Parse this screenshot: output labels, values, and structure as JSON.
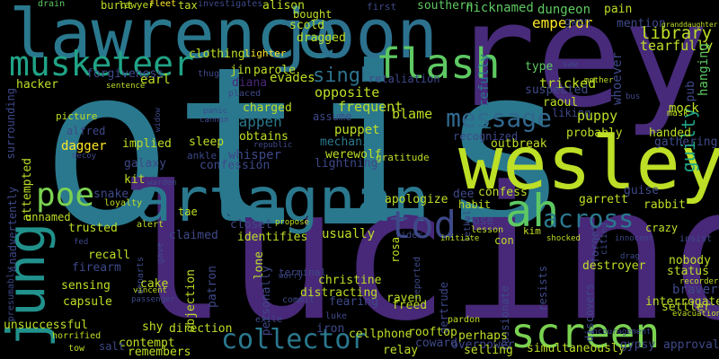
{
  "word_cloud": {
    "background": "#000000",
    "palette": [
      "#440154",
      "#3b528b",
      "#21918c",
      "#5ec962",
      "#bddf26"
    ],
    "words": [
      {
        "text": "otis",
        "color": "#2a788e"
      },
      {
        "text": "lucinda",
        "color": "#482878"
      },
      {
        "text": "rey",
        "color": "#472a7a"
      },
      {
        "text": "lawrence",
        "color": "#2a788e"
      },
      {
        "text": "joon",
        "color": "#2c718e"
      },
      {
        "text": "wesley",
        "color": "#bddf26"
      },
      {
        "text": "artagnan",
        "color": "#2a788e"
      },
      {
        "text": "ah",
        "color": "#5ec962"
      },
      {
        "text": "jung",
        "color": "#21918c"
      },
      {
        "text": "screen",
        "color": "#7ad151"
      },
      {
        "text": "flash",
        "color": "#5ec962"
      },
      {
        "text": "musketeer",
        "color": "#20a386"
      },
      {
        "text": "tod",
        "color": "#3e4989"
      },
      {
        "text": "poe",
        "color": "#7ad151"
      },
      {
        "text": "message",
        "color": "#31688e"
      },
      {
        "text": "collector",
        "color": "#2a788e"
      },
      {
        "text": "across",
        "color": "#2a788e"
      },
      {
        "text": "singh",
        "color": "#2c728e"
      },
      {
        "text": "library",
        "color": "#bddf26"
      },
      {
        "text": "guilty",
        "color": "#20a386"
      },
      {
        "text": "emperor",
        "color": "#fde725"
      },
      {
        "text": "nicknamed",
        "color": "#5ec962"
      },
      {
        "text": "southern",
        "color": "#5ec962"
      },
      {
        "text": "alison",
        "color": "#bddf26"
      },
      {
        "text": "bought",
        "color": "#bddf26"
      },
      {
        "text": "burnt",
        "color": "#bddf26"
      },
      {
        "text": "lawyer",
        "color": "#bddf26"
      },
      {
        "text": "fleet",
        "color": "#fde725"
      },
      {
        "text": "tax",
        "color": "#bddf26"
      },
      {
        "text": "investigates",
        "color": "#3e4989"
      },
      {
        "text": "drain",
        "color": "#5ec962"
      },
      {
        "text": "first",
        "color": "#3e4989"
      },
      {
        "text": "scold",
        "color": "#bddf26"
      },
      {
        "text": "dragged",
        "color": "#bddf26"
      },
      {
        "text": "dungeon",
        "color": "#5ec962"
      },
      {
        "text": "pain",
        "color": "#bddf26"
      },
      {
        "text": "gwen",
        "color": "#3e4989"
      },
      {
        "text": "mention",
        "color": "#3e4989"
      },
      {
        "text": "tearfully",
        "color": "#bddf26"
      },
      {
        "text": "clothing",
        "color": "#bddf26"
      },
      {
        "text": "lighter",
        "color": "#fde725"
      },
      {
        "text": "jin",
        "color": "#bddf26"
      },
      {
        "text": "parole",
        "color": "#bddf26"
      },
      {
        "text": "diana",
        "color": "#482878"
      },
      {
        "text": "evades",
        "color": "#bddf26"
      },
      {
        "text": "earl",
        "color": "#bddf26"
      },
      {
        "text": "forgiveness",
        "color": "#3e4989"
      },
      {
        "text": "hacker",
        "color": "#bddf26"
      },
      {
        "text": "sentence",
        "color": "#bddf26"
      },
      {
        "text": "thug",
        "color": "#3e4989"
      },
      {
        "text": "placed",
        "color": "#3e4989"
      },
      {
        "text": "retaliation",
        "color": "#3e4989"
      },
      {
        "text": "opposite",
        "color": "#bddf26"
      },
      {
        "text": "peacefully",
        "color": "#2a788e"
      },
      {
        "text": "type",
        "color": "#5ec962"
      },
      {
        "text": "tricked",
        "color": "#bddf26"
      },
      {
        "text": "suspected",
        "color": "#3e4989"
      },
      {
        "text": "raoul",
        "color": "#bddf26"
      },
      {
        "text": "whoever",
        "color": "#3e4989"
      },
      {
        "text": "hanging",
        "color": "#5ec962"
      },
      {
        "text": "pub",
        "color": "#3e4989"
      },
      {
        "text": "mother",
        "color": "#bddf26"
      },
      {
        "text": "bus",
        "color": "#3e4989"
      },
      {
        "text": "saw",
        "color": "#3e4989"
      },
      {
        "text": "granddaughter",
        "color": "#bddf26"
      },
      {
        "text": "frequent",
        "color": "#bddf26"
      },
      {
        "text": "assume",
        "color": "#3e4989"
      },
      {
        "text": "blame",
        "color": "#bddf26"
      },
      {
        "text": "liking",
        "color": "#3e4989"
      },
      {
        "text": "puppy",
        "color": "#bddf26"
      },
      {
        "text": "mask",
        "color": "#bddf26"
      },
      {
        "text": "mock",
        "color": "#bddf26"
      },
      {
        "text": "charged",
        "color": "#bddf26"
      },
      {
        "text": "happen",
        "color": "#2a788e"
      },
      {
        "text": "surrounding",
        "color": "#3e4989"
      },
      {
        "text": "picture",
        "color": "#bddf26"
      },
      {
        "text": "alfred",
        "color": "#3e4989"
      },
      {
        "text": "dagger",
        "color": "#fde725"
      },
      {
        "text": "implied",
        "color": "#bddf26"
      },
      {
        "text": "panic",
        "color": "#3e4989"
      },
      {
        "text": "cannon",
        "color": "#3e4989"
      },
      {
        "text": "widow",
        "color": "#3e4989"
      },
      {
        "text": "obtains",
        "color": "#bddf26"
      },
      {
        "text": "republic",
        "color": "#3e4989"
      },
      {
        "text": "puppet",
        "color": "#bddf26"
      },
      {
        "text": "mechanic",
        "color": "#2a788e"
      },
      {
        "text": "recognized",
        "color": "#3e4989"
      },
      {
        "text": "outbreak",
        "color": "#bddf26"
      },
      {
        "text": "probably",
        "color": "#bddf26"
      },
      {
        "text": "handed",
        "color": "#bddf26"
      },
      {
        "text": "gathering",
        "color": "#3e4989"
      },
      {
        "text": "sleep",
        "color": "#bddf26"
      },
      {
        "text": "whisper",
        "color": "#3e4989"
      },
      {
        "text": "werewolf",
        "color": "#bddf26"
      },
      {
        "text": "gratitude",
        "color": "#bddf26"
      },
      {
        "text": "ankle",
        "color": "#3e4989"
      },
      {
        "text": "confession",
        "color": "#3e4989"
      },
      {
        "text": "lightning",
        "color": "#3e4989"
      },
      {
        "text": "galaxy",
        "color": "#3e4989"
      },
      {
        "text": "decoy",
        "color": "#3e4989"
      },
      {
        "text": "kit",
        "color": "#bddf26"
      },
      {
        "text": "warden",
        "color": "#3e4989"
      },
      {
        "text": "snake",
        "color": "#3e4989"
      },
      {
        "text": "loyalty",
        "color": "#bddf26"
      },
      {
        "text": "attempted",
        "color": "#bddf26"
      },
      {
        "text": "inadvertently",
        "color": "#3e4989"
      },
      {
        "text": "unnamed",
        "color": "#bddf26"
      },
      {
        "text": "tae",
        "color": "#bddf26"
      },
      {
        "text": "closet",
        "color": "#3e4989"
      },
      {
        "text": "apologize",
        "color": "#bddf26"
      },
      {
        "text": "dee",
        "color": "#3e4989"
      },
      {
        "text": "habit",
        "color": "#bddf26"
      },
      {
        "text": "confess",
        "color": "#bddf26"
      },
      {
        "text": "guise",
        "color": "#3e4989"
      },
      {
        "text": "garrett",
        "color": "#bddf26"
      },
      {
        "text": "rabbit",
        "color": "#bddf26"
      },
      {
        "text": "alert",
        "color": "#bddf26"
      },
      {
        "text": "propose",
        "color": "#bddf26"
      },
      {
        "text": "lethal",
        "color": "#3e4989"
      },
      {
        "text": "rose",
        "color": "#3e4989"
      },
      {
        "text": "kim",
        "color": "#bddf26"
      },
      {
        "text": "lesson",
        "color": "#bddf26"
      },
      {
        "text": "crazy",
        "color": "#bddf26"
      },
      {
        "text": "trusted",
        "color": "#bddf26"
      },
      {
        "text": "claimed",
        "color": "#3e4989"
      },
      {
        "text": "identifies",
        "color": "#bddf26"
      },
      {
        "text": "usually",
        "color": "#bddf26"
      },
      {
        "text": "rider",
        "color": "#3e4989"
      },
      {
        "text": "initiate",
        "color": "#bddf26"
      },
      {
        "text": "forget",
        "color": "#3e4989"
      },
      {
        "text": "citing",
        "color": "#3e4989"
      },
      {
        "text": "innocent",
        "color": "#3e4989"
      },
      {
        "text": "insist",
        "color": "#3e4989"
      },
      {
        "text": "nobody",
        "color": "#bddf26"
      },
      {
        "text": "status",
        "color": "#bddf26"
      },
      {
        "text": "drag",
        "color": "#3e4989"
      },
      {
        "text": "fed",
        "color": "#3e4989"
      },
      {
        "text": "recall",
        "color": "#bddf26"
      },
      {
        "text": "firearm",
        "color": "#3e4989"
      },
      {
        "text": "departs",
        "color": "#3e4989"
      },
      {
        "text": "gave",
        "color": "#3e4989"
      },
      {
        "text": "lone",
        "color": "#bddf26"
      },
      {
        "text": "con",
        "color": "#bddf26"
      },
      {
        "text": "shocked",
        "color": "#bddf26"
      },
      {
        "text": "reported",
        "color": "#3e4989"
      },
      {
        "text": "destroyer",
        "color": "#bddf26"
      },
      {
        "text": "bravery",
        "color": "#3e4989"
      },
      {
        "text": "recorder",
        "color": "#bddf26"
      },
      {
        "text": "settler",
        "color": "#bddf26"
      },
      {
        "text": "evacuation",
        "color": "#bddf26"
      },
      {
        "text": "presumably",
        "color": "#3e4989"
      },
      {
        "text": "sensing",
        "color": "#bddf26"
      },
      {
        "text": "capsule",
        "color": "#bddf26"
      },
      {
        "text": "cake",
        "color": "#bddf26"
      },
      {
        "text": "vincent",
        "color": "#bddf26"
      },
      {
        "text": "passenger",
        "color": "#3e4989"
      },
      {
        "text": "patron",
        "color": "#3e4989"
      },
      {
        "text": "objection",
        "color": "#bddf26"
      },
      {
        "text": "personally",
        "color": "#3e4989"
      },
      {
        "text": "terminal",
        "color": "#3e4989"
      },
      {
        "text": "christine",
        "color": "#bddf26"
      },
      {
        "text": "distracting",
        "color": "#bddf26"
      },
      {
        "text": "worry",
        "color": "#3e4989"
      },
      {
        "text": "commit",
        "color": "#3e4989"
      },
      {
        "text": "fearing",
        "color": "#3e4989"
      },
      {
        "text": "raven",
        "color": "#bddf26"
      },
      {
        "text": "freed",
        "color": "#bddf26"
      },
      {
        "text": "gertrude",
        "color": "#3e4989"
      },
      {
        "text": "passionate",
        "color": "#3e4989"
      },
      {
        "text": "resists",
        "color": "#3e4989"
      },
      {
        "text": "discovers",
        "color": "#3e4989"
      },
      {
        "text": "interrogate",
        "color": "#bddf26"
      },
      {
        "text": "shy",
        "color": "#bddf26"
      },
      {
        "text": "direction",
        "color": "#bddf26"
      },
      {
        "text": "exile",
        "color": "#3e4989"
      },
      {
        "text": "luke",
        "color": "#3e4989"
      },
      {
        "text": "pardon",
        "color": "#bddf26"
      },
      {
        "text": "unsuccessful",
        "color": "#bddf26"
      },
      {
        "text": "contempt",
        "color": "#bddf26"
      },
      {
        "text": "remembers",
        "color": "#bddf26"
      },
      {
        "text": "iron",
        "color": "#3e4989"
      },
      {
        "text": "cellphone",
        "color": "#bddf26"
      },
      {
        "text": "rooftop",
        "color": "#bddf26"
      },
      {
        "text": "perhaps",
        "color": "#bddf26"
      },
      {
        "text": "overpower",
        "color": "#3e4989"
      },
      {
        "text": "coward",
        "color": "#3e4989"
      },
      {
        "text": "relay",
        "color": "#bddf26"
      },
      {
        "text": "selling",
        "color": "#bddf26"
      },
      {
        "text": "simultaneously",
        "color": "#bddf26"
      },
      {
        "text": "encouragement",
        "color": "#3e4989"
      },
      {
        "text": "gypsy",
        "color": "#3e4989"
      },
      {
        "text": "approval",
        "color": "#3e4989"
      },
      {
        "text": "salt",
        "color": "#3e4989"
      },
      {
        "text": "horrified",
        "color": "#bddf26"
      },
      {
        "text": "tow",
        "color": "#bddf26"
      },
      {
        "text": "rosa",
        "color": "#bddf26"
      }
    ]
  }
}
